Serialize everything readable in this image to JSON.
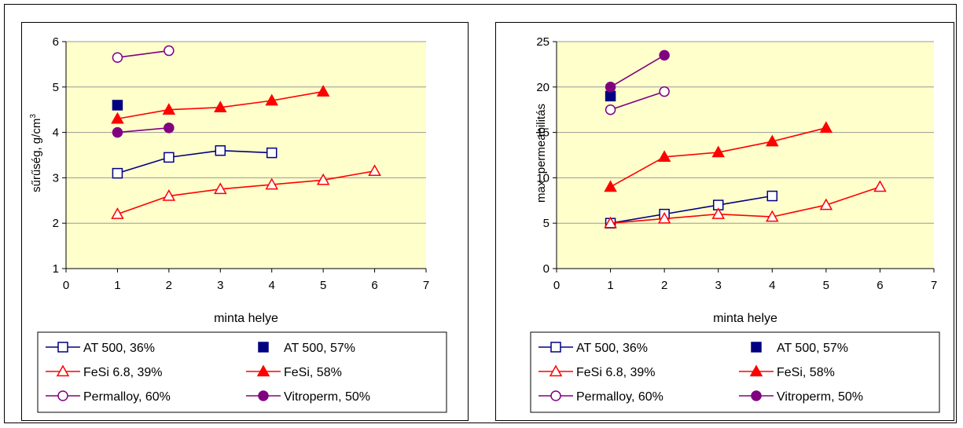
{
  "chart_data": [
    {
      "type": "line",
      "xlabel": "minta helye",
      "ylabel": "sűrűség, g/cm",
      "ylabel_sup": "3",
      "xlim": [
        0,
        7
      ],
      "ylim": [
        1,
        6
      ],
      "xticks": [
        "0",
        "1",
        "2",
        "3",
        "4",
        "5",
        "6",
        "7"
      ],
      "yticks": [
        "1",
        "2",
        "3",
        "4",
        "5",
        "6"
      ],
      "grid": true,
      "plot_background": "#ffffcc",
      "legend_position": "bottom",
      "series": [
        {
          "name": "AT 500, 36%",
          "color": "#000080",
          "marker": "square-open",
          "line": true,
          "x": [
            1,
            2,
            3,
            4
          ],
          "y": [
            3.1,
            3.45,
            3.6,
            3.55
          ]
        },
        {
          "name": "AT 500, 57%",
          "color": "#000080",
          "marker": "square-filled",
          "line": false,
          "x": [
            1
          ],
          "y": [
            4.6
          ]
        },
        {
          "name": "FeSi 6.8, 39%",
          "color": "#ff0000",
          "marker": "triangle-open",
          "line": true,
          "x": [
            1,
            2,
            3,
            4,
            5,
            6
          ],
          "y": [
            2.2,
            2.6,
            2.75,
            2.85,
            2.95,
            3.15
          ]
        },
        {
          "name": "FeSi, 58%",
          "color": "#ff0000",
          "marker": "triangle-filled",
          "line": true,
          "x": [
            1,
            2,
            3,
            4,
            5
          ],
          "y": [
            4.3,
            4.5,
            4.55,
            4.7,
            4.9
          ]
        },
        {
          "name": "Permalloy, 60%",
          "color": "#800080",
          "marker": "circle-open",
          "line": true,
          "x": [
            1,
            2
          ],
          "y": [
            5.65,
            5.8
          ]
        },
        {
          "name": "Vitroperm, 50%",
          "color": "#800080",
          "marker": "circle-filled",
          "line": true,
          "x": [
            1,
            2
          ],
          "y": [
            4.0,
            4.1
          ]
        }
      ]
    },
    {
      "type": "line",
      "xlabel": "minta helye",
      "ylabel": "max. permeabilitás",
      "xlim": [
        0,
        7
      ],
      "ylim": [
        0,
        25
      ],
      "xticks": [
        "0",
        "1",
        "2",
        "3",
        "4",
        "5",
        "6",
        "7"
      ],
      "yticks": [
        "0",
        "5",
        "10",
        "15",
        "20",
        "25"
      ],
      "grid": true,
      "plot_background": "#ffffcc",
      "legend_position": "bottom",
      "series": [
        {
          "name": "AT 500, 36%",
          "color": "#000080",
          "marker": "square-open",
          "line": true,
          "x": [
            1,
            2,
            3,
            4
          ],
          "y": [
            5,
            6,
            7,
            8
          ]
        },
        {
          "name": "AT 500, 57%",
          "color": "#000080",
          "marker": "square-filled",
          "line": false,
          "x": [
            1
          ],
          "y": [
            19
          ]
        },
        {
          "name": "FeSi 6.8, 39%",
          "color": "#ff0000",
          "marker": "triangle-open",
          "line": true,
          "x": [
            1,
            2,
            3,
            4,
            5,
            6
          ],
          "y": [
            5,
            5.5,
            6,
            5.7,
            7,
            9
          ]
        },
        {
          "name": "FeSi, 58%",
          "color": "#ff0000",
          "marker": "triangle-filled",
          "line": true,
          "x": [
            1,
            2,
            3,
            4,
            5
          ],
          "y": [
            9,
            12.3,
            12.8,
            14,
            15.5
          ]
        },
        {
          "name": "Permalloy, 60%",
          "color": "#800080",
          "marker": "circle-open",
          "line": true,
          "x": [
            1,
            2
          ],
          "y": [
            17.5,
            19.5
          ]
        },
        {
          "name": "Vitroperm, 50%",
          "color": "#800080",
          "marker": "circle-filled",
          "line": true,
          "x": [
            1,
            2
          ],
          "y": [
            20,
            23.5
          ]
        }
      ]
    }
  ]
}
